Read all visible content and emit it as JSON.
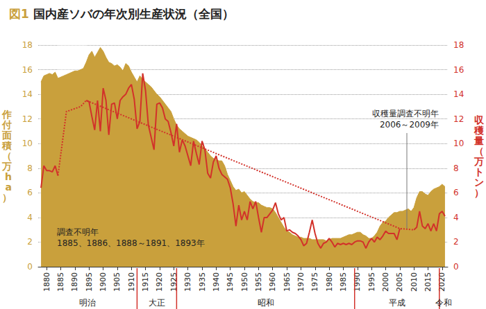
{
  "chart_data": {
    "type": "line",
    "title": "図1 国内産ソバの年次別生産状況（全国）",
    "y_label": "作付面積（万ha）",
    "y2_label": "収穫量（万トン）",
    "x": [
      1878,
      1879,
      1880,
      1881,
      1882,
      1883,
      1884,
      1885,
      1886,
      1887,
      1888,
      1889,
      1890,
      1891,
      1892,
      1893,
      1894,
      1895,
      1896,
      1897,
      1898,
      1899,
      1900,
      1901,
      1902,
      1903,
      1904,
      1905,
      1906,
      1907,
      1908,
      1909,
      1910,
      1911,
      1912,
      1913,
      1914,
      1915,
      1916,
      1917,
      1918,
      1919,
      1920,
      1921,
      1922,
      1923,
      1924,
      1925,
      1926,
      1927,
      1928,
      1929,
      1930,
      1931,
      1932,
      1933,
      1934,
      1935,
      1936,
      1937,
      1938,
      1939,
      1940,
      1941,
      1942,
      1943,
      1944,
      1945,
      1946,
      1947,
      1948,
      1949,
      1950,
      1951,
      1952,
      1953,
      1954,
      1955,
      1956,
      1957,
      1958,
      1959,
      1960,
      1961,
      1962,
      1963,
      1964,
      1965,
      1966,
      1967,
      1968,
      1969,
      1970,
      1971,
      1972,
      1973,
      1974,
      1975,
      1976,
      1977,
      1978,
      1979,
      1980,
      1981,
      1982,
      1983,
      1984,
      1985,
      1986,
      1987,
      1988,
      1989,
      1990,
      1991,
      1992,
      1993,
      1994,
      1995,
      1996,
      1997,
      1998,
      1999,
      2000,
      2001,
      2002,
      2003,
      2004,
      2005,
      2006,
      2007,
      2008,
      2009,
      2010,
      2011,
      2012,
      2013,
      2014,
      2015,
      2016,
      2017,
      2018,
      2019,
      2020,
      2021
    ],
    "xlim": [
      1877,
      2022
    ],
    "xticks": [
      1880,
      1885,
      1890,
      1895,
      1900,
      1905,
      1910,
      1915,
      1920,
      1925,
      1930,
      1935,
      1940,
      1945,
      1950,
      1955,
      1960,
      1965,
      1970,
      1975,
      1980,
      1985,
      1990,
      1995,
      2000,
      2005,
      2010,
      2015,
      2020
    ],
    "ylim": [
      0,
      18
    ],
    "yticks": [
      0,
      2,
      4,
      6,
      8,
      10,
      12,
      14,
      16,
      18
    ],
    "y2lim": [
      0,
      18
    ],
    "y2ticks": [
      0,
      2,
      4,
      6,
      8,
      10,
      12,
      14,
      16,
      18
    ],
    "grid": true,
    "series": [
      {
        "name": "作付面積",
        "type": "area",
        "color": "#c9a03c",
        "values": [
          15.0,
          15.5,
          15.6,
          15.7,
          15.6,
          15.8,
          15.3,
          15.4,
          15.5,
          15.6,
          15.7,
          15.8,
          15.9,
          15.9,
          16.0,
          16.1,
          16.6,
          17.2,
          17.5,
          17.0,
          17.4,
          17.8,
          17.5,
          17.0,
          16.6,
          16.5,
          16.3,
          16.4,
          16.2,
          15.9,
          16.5,
          16.3,
          15.8,
          15.4,
          15.0,
          15.5,
          15.2,
          15.0,
          14.8,
          14.6,
          14.3,
          14.0,
          13.8,
          13.5,
          13.2,
          12.9,
          12.6,
          12.0,
          11.5,
          11.2,
          11.0,
          10.8,
          10.6,
          10.5,
          10.4,
          10.3,
          10.1,
          9.8,
          9.6,
          9.3,
          9.0,
          8.8,
          8.7,
          8.6,
          8.6,
          8.2,
          7.5,
          7.0,
          6.5,
          6.2,
          6.3,
          6.0,
          6.1,
          5.8,
          5.5,
          5.3,
          5.2,
          5.2,
          5.0,
          4.9,
          4.8,
          4.8,
          4.7,
          4.4,
          4.0,
          3.6,
          3.2,
          2.9,
          2.8,
          2.6,
          2.5,
          2.4,
          2.4,
          2.3,
          2.3,
          2.3,
          2.2,
          2.2,
          2.2,
          2.2,
          2.2,
          2.1,
          2.2,
          2.3,
          2.3,
          2.3,
          2.3,
          2.4,
          2.5,
          2.6,
          2.6,
          2.7,
          2.8,
          2.8,
          2.6,
          2.5,
          2.3,
          2.3,
          2.5,
          2.8,
          3.3,
          3.6,
          3.7,
          4.0,
          4.2,
          4.4,
          4.4,
          4.5,
          4.5,
          4.6,
          4.7,
          4.5,
          4.8,
          5.6,
          6.1,
          6.1,
          5.9,
          5.8,
          6.1,
          6.3,
          6.4,
          6.5,
          6.7,
          6.5
        ]
      },
      {
        "name": "収穫量",
        "type": "line",
        "color": "#d2312a",
        "axis": "y2",
        "line_style": "solid",
        "values": [
          6.4,
          8.2,
          7.8,
          7.8,
          7.7,
          8.2,
          7.4,
          null,
          null,
          12.6,
          null,
          null,
          null,
          null,
          13.0,
          null,
          13.5,
          13.4,
          12.2,
          11.1,
          13.5,
          11.0,
          14.5,
          13.5,
          10.7,
          13.2,
          13.3,
          12.0,
          13.5,
          13.8,
          14.0,
          14.5,
          14.8,
          13.6,
          11.2,
          11.8,
          15.7,
          14.3,
          11.5,
          10.5,
          9.5,
          13.2,
          13.3,
          12.9,
          12.0,
          11.8,
          10.9,
          9.8,
          11.6,
          9.3,
          10.3,
          9.8,
          9.0,
          8.2,
          10.2,
          9.2,
          8.3,
          10.2,
          9.5,
          7.6,
          7.2,
          8.5,
          9.0,
          8.0,
          7.5,
          7.3,
          7.1,
          6.4,
          5.1,
          3.3,
          5.0,
          3.8,
          4.5,
          3.8,
          5.3,
          4.7,
          5.3,
          4.0,
          2.8,
          4.0,
          4.0,
          4.3,
          4.6,
          5.2,
          4.3,
          3.8,
          4.0,
          2.9,
          3.0,
          2.8,
          2.7,
          2.5,
          2.2,
          1.7,
          1.9,
          2.8,
          3.8,
          2.7,
          1.9,
          1.5,
          1.9,
          2.0,
          2.3,
          2.0,
          1.6,
          1.9,
          1.8,
          1.9,
          1.8,
          1.9,
          1.8,
          2.0,
          2.1,
          2.1,
          2.0,
          1.5,
          2.0,
          2.3,
          2.0,
          2.4,
          2.2,
          2.5,
          2.9,
          2.7,
          2.7,
          2.7,
          2.2,
          3.1,
          null,
          null,
          null,
          null,
          3.0,
          3.2,
          4.5,
          3.3,
          3.1,
          3.5,
          2.9,
          3.5,
          2.9,
          4.3,
          4.5,
          4.1
        ]
      },
      {
        "type": "line",
        "color": "#d2312a",
        "axis": "y2",
        "line_style": "dotted",
        "values": [
          null,
          null,
          null,
          null,
          null,
          null,
          7.4,
          null,
          null,
          12.6,
          null,
          null,
          null,
          null,
          13.0,
          null,
          13.5,
          null,
          null,
          null,
          null,
          null,
          null,
          null,
          null,
          null,
          null,
          null,
          null,
          null,
          null,
          null,
          null,
          null,
          null,
          null,
          null,
          null,
          null,
          null,
          null,
          null,
          null,
          null,
          null,
          null,
          null,
          null,
          null,
          null,
          null,
          null,
          null,
          null,
          null,
          null,
          null,
          null,
          null,
          null,
          null,
          null,
          null,
          null,
          null,
          null,
          null,
          null,
          null,
          null,
          null,
          null,
          null,
          null,
          null,
          null,
          null,
          null,
          null,
          null,
          null,
          null,
          null,
          null,
          null,
          null,
          null,
          null,
          null,
          null,
          null,
          null,
          null,
          null,
          null,
          null,
          null,
          null,
          null,
          null,
          null,
          null,
          null,
          null,
          null,
          null,
          null,
          null,
          null,
          null,
          null,
          null,
          null,
          null,
          null,
          null,
          null,
          null,
          null,
          null,
          null,
          null,
          null,
          null,
          null,
          null,
          null,
          3.1,
          null,
          null,
          null,
          null,
          3.0,
          null,
          null,
          null,
          null,
          null,
          null,
          null,
          null,
          null,
          null,
          null
        ]
      }
    ],
    "eras": [
      {
        "label": "明治",
        "end": 1912
      },
      {
        "label": "大正",
        "end": 1926
      },
      {
        "label": "昭和",
        "end": 1989
      },
      {
        "label": "平成",
        "end": 2019
      },
      {
        "label": "令和"
      }
    ],
    "annotations": [
      {
        "text": "調査不明年\n1885、1886、1888～1891、1893年",
        "span": [
          1884,
          1894
        ]
      },
      {
        "text": "収穫量調査不明年\n2006～2009年",
        "span": [
          2006,
          2009
        ]
      }
    ]
  }
}
